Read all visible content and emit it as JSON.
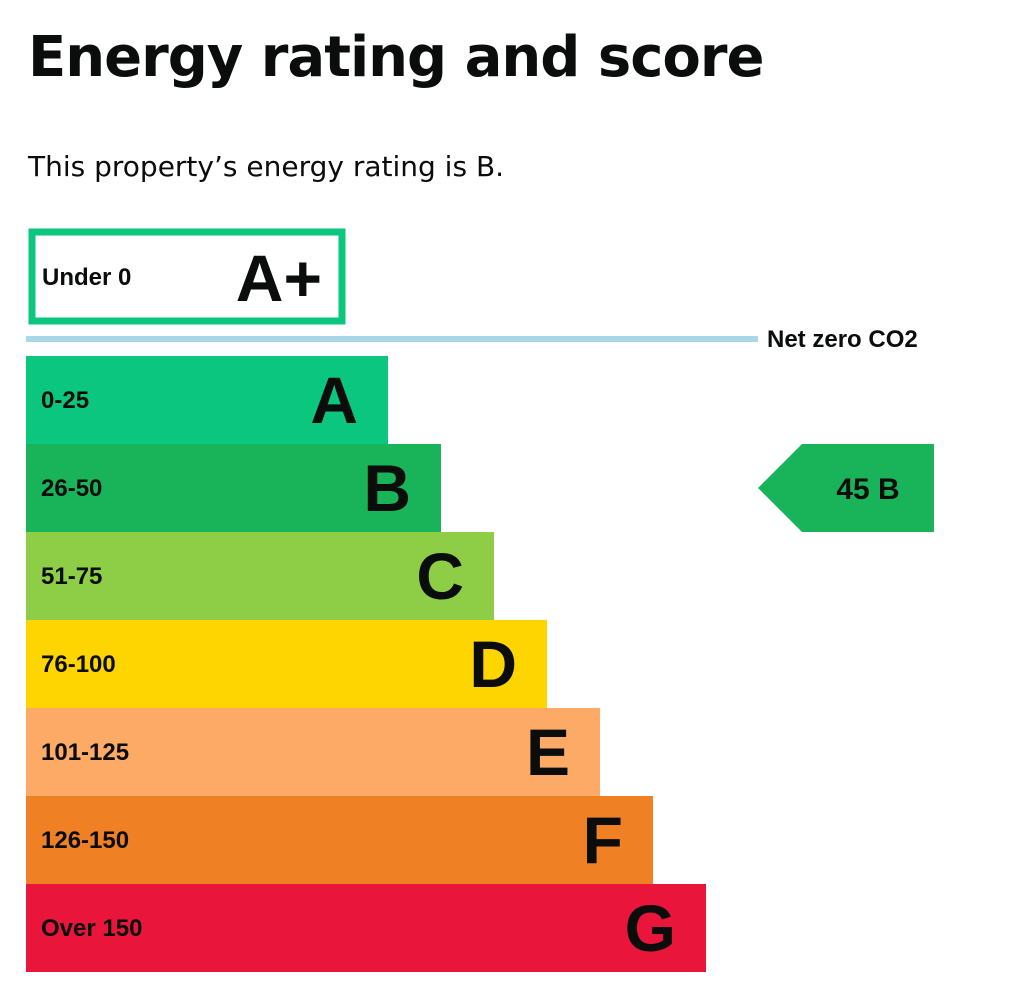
{
  "page": {
    "title": "Energy rating and score",
    "summary": "This property’s energy rating is B."
  },
  "chart_data": {
    "type": "bar",
    "categories": [
      "A+",
      "A",
      "B",
      "C",
      "D",
      "E",
      "F",
      "G"
    ],
    "bands": [
      {
        "letter": "A+",
        "range": "Under 0",
        "color": "#0ac67f",
        "outlined": true
      },
      {
        "letter": "A",
        "range": "0-25",
        "color": "#0ac67f"
      },
      {
        "letter": "B",
        "range": "26-50",
        "color": "#19b459"
      },
      {
        "letter": "C",
        "range": "51-75",
        "color": "#8dce46"
      },
      {
        "letter": "D",
        "range": "76-100",
        "color": "#ffd500"
      },
      {
        "letter": "E",
        "range": "101-125",
        "color": "#fcaa65"
      },
      {
        "letter": "F",
        "range": "126-150",
        "color": "#ef8023"
      },
      {
        "letter": "G",
        "range": "Over 150",
        "color": "#e9153b"
      }
    ],
    "net_zero_label": "Net zero CO2",
    "net_zero_line_color": "#a8d8e8",
    "current": {
      "score": 45,
      "band": "B",
      "color": "#19b459"
    }
  }
}
